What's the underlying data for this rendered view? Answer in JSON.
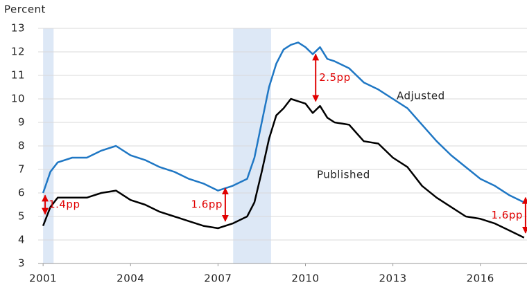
{
  "chart_data": {
    "type": "line",
    "y_label": "Percent",
    "x": [
      2001.0,
      2001.25,
      2001.5,
      2002.0,
      2002.5,
      2003.0,
      2003.5,
      2004.0,
      2004.5,
      2005.0,
      2005.5,
      2006.0,
      2006.5,
      2007.0,
      2007.5,
      2008.0,
      2008.25,
      2008.5,
      2008.75,
      2009.0,
      2009.25,
      2009.5,
      2009.75,
      2010.0,
      2010.25,
      2010.5,
      2010.75,
      2011.0,
      2011.5,
      2012.0,
      2012.5,
      2013.0,
      2013.5,
      2014.0,
      2014.5,
      2015.0,
      2015.5,
      2016.0,
      2016.5,
      2017.0,
      2017.5
    ],
    "series": [
      {
        "name": "Adjusted",
        "color": "#1f77c4",
        "values": [
          6.0,
          6.9,
          7.3,
          7.5,
          7.5,
          7.8,
          8.0,
          7.6,
          7.4,
          7.1,
          6.9,
          6.6,
          6.4,
          6.1,
          6.3,
          6.6,
          7.5,
          9.0,
          10.5,
          11.5,
          12.1,
          12.3,
          12.4,
          12.2,
          11.9,
          12.2,
          11.7,
          11.6,
          11.3,
          10.7,
          10.4,
          10.0,
          9.6,
          8.9,
          8.2,
          7.6,
          7.1,
          6.6,
          6.3,
          5.9,
          5.6
        ]
      },
      {
        "name": "Published",
        "color": "#000000",
        "values": [
          4.6,
          5.4,
          5.8,
          5.8,
          5.8,
          6.0,
          6.1,
          5.7,
          5.5,
          5.2,
          5.0,
          4.8,
          4.6,
          4.5,
          4.7,
          5.0,
          5.6,
          6.9,
          8.3,
          9.3,
          9.6,
          10.0,
          9.9,
          9.8,
          9.4,
          9.7,
          9.2,
          9.0,
          8.9,
          8.2,
          8.1,
          7.5,
          7.1,
          6.3,
          5.8,
          5.4,
          5.0,
          4.9,
          4.7,
          4.4,
          4.1
        ]
      }
    ],
    "recessions": [
      [
        2001.0,
        2001.36
      ],
      [
        2007.52,
        2008.82
      ]
    ],
    "recession_color": "#dde8f6",
    "annotations": [
      {
        "text": "1.4pp",
        "x": 2001.07,
        "from": 5.1,
        "to": 5.9
      },
      {
        "text": "1.6pp",
        "x": 2007.25,
        "from": 4.8,
        "to": 6.2
      },
      {
        "text": "2.5pp",
        "x": 2010.35,
        "from": 9.9,
        "to": 11.9
      },
      {
        "text": "1.6pp",
        "x": 2017.55,
        "from": 4.3,
        "to": 5.8
      }
    ],
    "annotation_color": "#e00000",
    "xlim": [
      2000.83,
      2017.6
    ],
    "xticks": [
      2001,
      2004,
      2007,
      2010,
      2013,
      2016
    ],
    "ylim": [
      3,
      13
    ],
    "yticks": [
      3,
      4,
      5,
      6,
      7,
      8,
      9,
      10,
      11,
      12,
      13
    ],
    "grid": true
  }
}
